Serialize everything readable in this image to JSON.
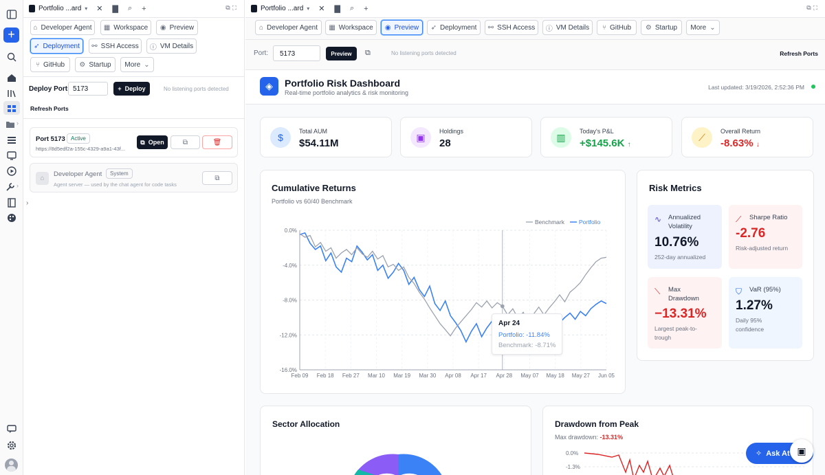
{
  "rail": {
    "icons": [
      "sidebar-toggle-icon",
      "new-plus-icon",
      "search-icon",
      "home-icon",
      "library-icon",
      "dashboard-icon",
      "folder-icon",
      "list-icon",
      "monitor-icon",
      "play-icon",
      "tools-icon",
      "book-icon",
      "palette-icon",
      "chat-icon",
      "settings-icon",
      "avatar"
    ]
  },
  "left": {
    "tab_title": "Portfolio ...ard",
    "toolbar": [
      "Developer Agent",
      "Workspace",
      "Preview",
      "Deployment",
      "SSH Access",
      "VM Details",
      "GitHub",
      "Startup",
      "More"
    ],
    "deploy_ports_label": "Deploy Ports",
    "port_value": "5173",
    "deploy_button": "Deploy",
    "no_ports": "No listening ports detected",
    "refresh_ports": "Refresh Ports",
    "port_card": {
      "title": "Port 5173",
      "status": "Active",
      "url": "https://8d5edf2a-155c-4329-a9a1-43f...",
      "open_button": "Open"
    },
    "agent_card": {
      "title": "Developer Agent",
      "badge": "System",
      "desc": "Agent server — used by the chat agent for code tasks"
    }
  },
  "right": {
    "tab_title": "Portfolio ...ard",
    "toolbar": [
      "Developer Agent",
      "Workspace",
      "Preview",
      "Deployment",
      "SSH Access",
      "VM Details",
      "GitHub",
      "Startup",
      "More"
    ],
    "port_label": "Port:",
    "port_value": "5173",
    "preview_button": "Preview",
    "no_ports": "No listening ports detected",
    "refresh_ports": "Refresh Ports"
  },
  "dashboard": {
    "title": "Portfolio Risk Dashboard",
    "subtitle": "Real-time portfolio analytics & risk monitoring",
    "last_updated": "Last updated: 3/19/2026, 2:52:36 PM",
    "stats": [
      {
        "title": "Total AUM",
        "value": "$54.11M",
        "icon": "dollar-icon",
        "color": "#111827"
      },
      {
        "title": "Holdings",
        "value": "28",
        "icon": "briefcase-icon",
        "color": "#111827"
      },
      {
        "title": "Today's P&L",
        "value": "+$145.6K",
        "arrow": "↑",
        "icon": "bar-chart-icon",
        "color": "#16a34a"
      },
      {
        "title": "Overall Return",
        "value": "-8.63%",
        "arrow": "↓",
        "icon": "trend-icon",
        "color": "#dc2626"
      }
    ],
    "returns": {
      "title": "Cumulative Returns",
      "subtitle": "Portfolio vs 60/40 Benchmark",
      "tooltip": {
        "date": "Apr 24",
        "portfolio": "Portfolio: -11.84%",
        "benchmark": "Benchmark: -8.71%"
      }
    },
    "risk": {
      "title": "Risk Metrics",
      "items": [
        {
          "title": "Annualized Volatility",
          "value": "10.76%",
          "sub": "252-day annualized",
          "icon": "pulse-icon"
        },
        {
          "title": "Sharpe Ratio",
          "value": "-2.76",
          "sub": "Risk-adjusted return",
          "icon": "trend-up-icon"
        },
        {
          "title": "Max Drawdown",
          "value": "−13.31%",
          "sub": "Largest peak-to-trough",
          "icon": "trend-down-icon"
        },
        {
          "title": "VaR (95%)",
          "value": "1.27%",
          "sub": "Daily 95% confidence",
          "icon": "shield-icon"
        }
      ]
    },
    "sector": {
      "title": "Sector Allocation"
    },
    "drawdown": {
      "title": "Drawdown from Peak",
      "sub_label": "Max drawdown:",
      "sub_value": "-13.31%",
      "ticks": [
        "0.0%",
        "-1.3%"
      ]
    },
    "ask_button": "Ask At",
    "colors": {
      "portfolio": "#3b82f6",
      "benchmark": "#9ca3af",
      "accent": "#2563eb",
      "negative": "#dc2626",
      "positive": "#16a34a"
    }
  },
  "chart_data": {
    "type": "line",
    "title": "Cumulative Returns",
    "subtitle": "Portfolio vs 60/40 Benchmark",
    "x_ticks": [
      "Feb 09",
      "Feb 18",
      "Feb 27",
      "Mar 10",
      "Mar 19",
      "Mar 30",
      "Apr 08",
      "Apr 17",
      "Apr 28",
      "May 07",
      "May 18",
      "May 27",
      "Jun 05"
    ],
    "y_ticks": [
      "0.0%",
      "-4.0%",
      "-8.0%",
      "-12.0%",
      "-16.0%"
    ],
    "ylim": [
      -16,
      0
    ],
    "legend": [
      "Benchmark",
      "Portfolio"
    ],
    "legend_position": "top-right",
    "grid": true,
    "series": [
      {
        "name": "Portfolio",
        "values": [
          -0.5,
          -0.3,
          -1.5,
          -2.2,
          -1.8,
          -3.5,
          -2.6,
          -4.2,
          -4.8,
          -3.2,
          -3.6,
          -1.8,
          -2.5,
          -3.4,
          -2.8,
          -4.6,
          -4.0,
          -5.5,
          -4.8,
          -3.8,
          -4.6,
          -6.2,
          -5.4,
          -6.8,
          -7.6,
          -6.4,
          -8.4,
          -9.2,
          -8.1,
          -9.8,
          -10.6,
          -11.5,
          -12.8,
          -11.6,
          -10.7,
          -12.2,
          -11.2,
          -10.4,
          -11.7,
          -11.8,
          -11.0,
          -11.9,
          -11.3,
          -12.0,
          -11.4,
          -10.7,
          -11.5,
          -10.5,
          -10.9,
          -11.8,
          -10.6,
          -10.0,
          -9.5,
          -10.2,
          -9.3,
          -9.8,
          -9.0,
          -8.5,
          -8.1,
          -8.4
        ]
      },
      {
        "name": "Benchmark",
        "values": [
          -0.4,
          -0.8,
          -0.6,
          -1.9,
          -1.4,
          -2.4,
          -2.0,
          -3.2,
          -2.6,
          -2.2,
          -2.8,
          -2.0,
          -2.7,
          -3.1,
          -2.4,
          -3.3,
          -2.9,
          -4.2,
          -3.9,
          -4.6,
          -4.2,
          -5.4,
          -6.1,
          -7.1,
          -7.9,
          -8.9,
          -9.8,
          -10.7,
          -11.4,
          -12.1,
          -11.2,
          -10.5,
          -9.8,
          -9.1,
          -8.3,
          -8.8,
          -8.1,
          -8.9,
          -8.3,
          -8.7,
          -9.7,
          -9.0,
          -10.1,
          -9.4,
          -10.6,
          -9.6,
          -8.8,
          -9.7,
          -8.9,
          -8.2,
          -7.4,
          -8.2,
          -7.1,
          -6.6,
          -6.0,
          -5.1,
          -4.3,
          -3.6,
          -3.2,
          -3.1
        ]
      }
    ],
    "tooltip": {
      "date": "Apr 24",
      "portfolio": -11.84,
      "benchmark": -8.71
    }
  }
}
